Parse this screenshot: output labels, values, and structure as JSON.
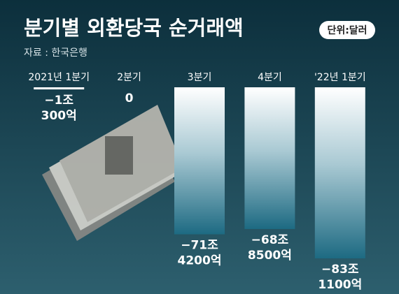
{
  "chart_data": {
    "type": "bar",
    "title": "분기별 외환당국 순거래액",
    "unit": "단위:달러",
    "source": "자료 : 한국은행",
    "categories": [
      "2021년 1분기",
      "2분기",
      "3분기",
      "4분기",
      "'22년 1분기"
    ],
    "values": [
      -10300,
      0,
      -714200,
      -688500,
      -831100
    ],
    "value_labels": [
      "−1조 300억",
      "0",
      "−71조 4200억",
      "−68조 8500억",
      "−83조 1100억"
    ]
  }
}
